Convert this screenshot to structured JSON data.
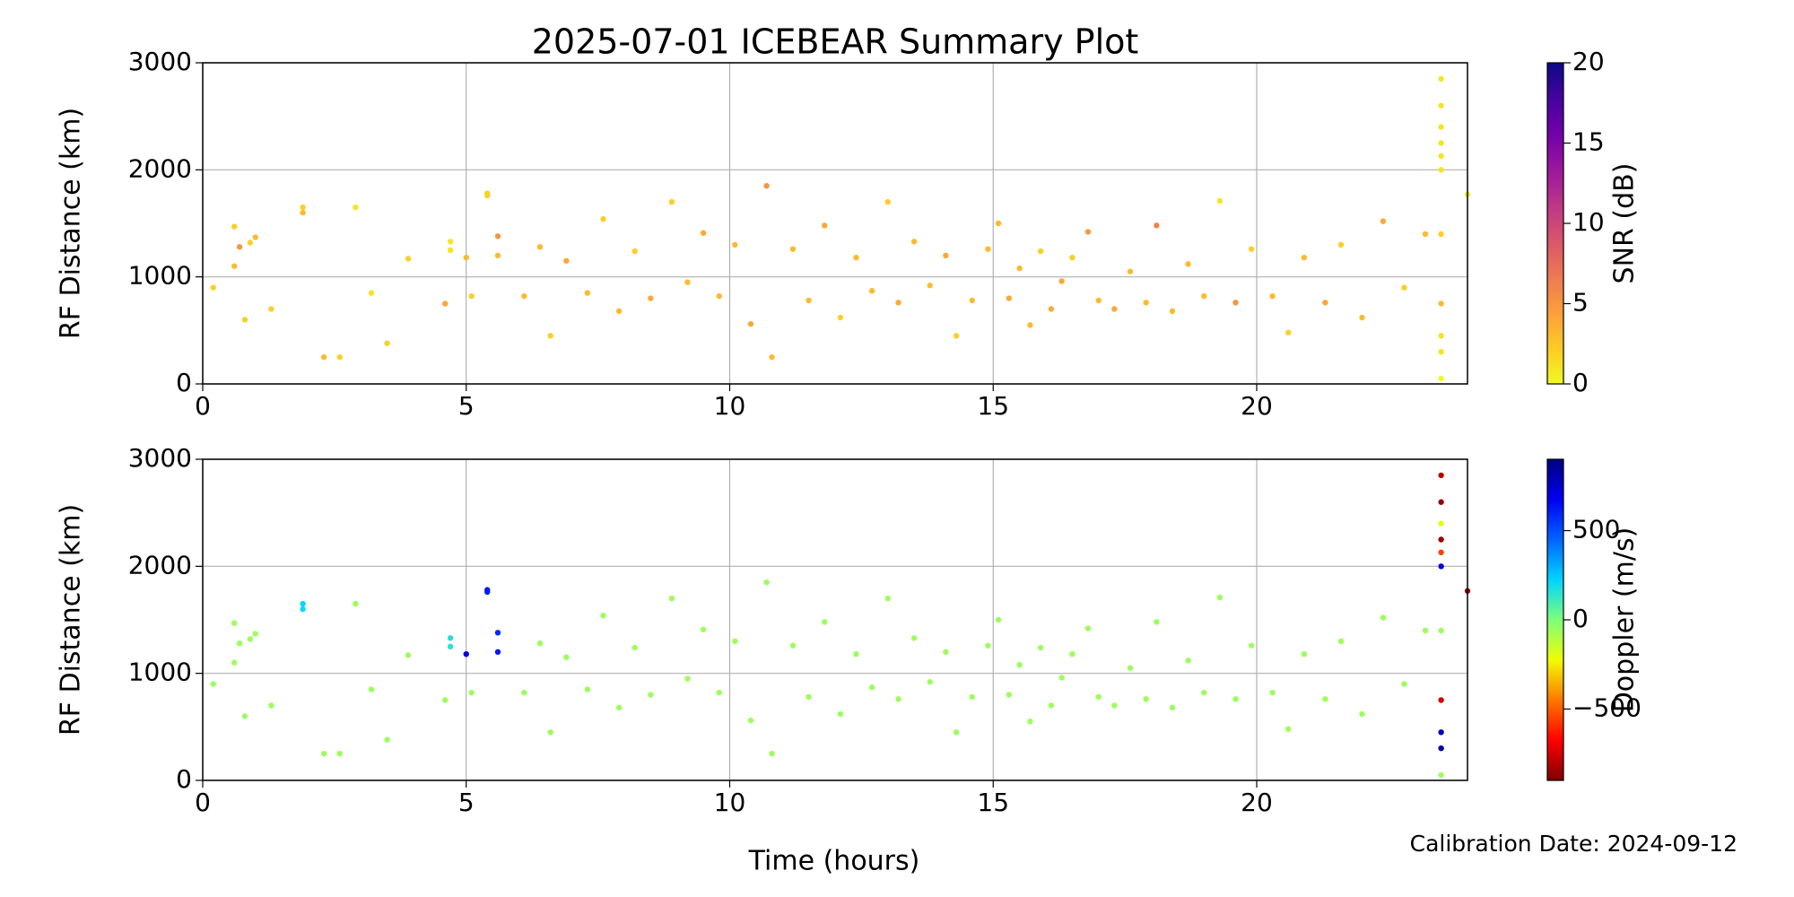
{
  "title": "2025-07-01 ICEBEAR Summary Plot",
  "x_label": "Time (hours)",
  "footnote": "Calibration Date: 2024-09-12",
  "chart_data": [
    {
      "type": "scatter",
      "ylabel": "RF Distance (km)",
      "xlim": [
        0,
        24
      ],
      "xticks": [
        0,
        5,
        10,
        15,
        20
      ],
      "ylim": [
        0,
        3000
      ],
      "yticks": [
        0,
        1000,
        2000,
        3000
      ],
      "grid": true,
      "x": [
        0.2,
        0.6,
        0.6,
        0.7,
        0.8,
        0.9,
        1.0,
        1.3,
        1.9,
        1.9,
        2.3,
        2.6,
        2.9,
        3.2,
        3.5,
        3.9,
        4.6,
        4.7,
        4.7,
        5.0,
        5.1,
        5.4,
        5.4,
        5.6,
        5.6,
        6.1,
        6.4,
        6.6,
        6.9,
        7.3,
        7.6,
        7.9,
        8.2,
        8.5,
        8.9,
        9.2,
        9.5,
        9.8,
        10.1,
        10.4,
        10.7,
        10.8,
        11.2,
        11.5,
        11.8,
        12.1,
        12.4,
        12.7,
        13.0,
        13.2,
        13.5,
        13.8,
        14.1,
        14.3,
        14.6,
        14.9,
        15.1,
        15.3,
        15.5,
        15.7,
        15.9,
        16.1,
        16.3,
        16.5,
        16.8,
        17.0,
        17.3,
        17.6,
        17.9,
        18.1,
        18.4,
        18.7,
        19.0,
        19.3,
        19.6,
        19.9,
        20.3,
        20.6,
        20.9,
        21.3,
        21.6,
        22.0,
        22.4,
        22.8,
        23.2,
        23.5,
        23.5,
        23.5,
        23.5,
        23.5,
        23.5,
        23.5,
        23.5,
        23.5,
        23.5,
        23.5,
        24.0
      ],
      "y": [
        900,
        1470,
        1100,
        1280,
        600,
        1320,
        1370,
        700,
        1600,
        1650,
        250,
        250,
        1650,
        850,
        380,
        1170,
        750,
        1250,
        1330,
        1180,
        820,
        1760,
        1780,
        1200,
        1380,
        820,
        1280,
        450,
        1150,
        850,
        1540,
        680,
        1240,
        800,
        1700,
        950,
        1410,
        820,
        1300,
        560,
        1850,
        250,
        1260,
        780,
        1480,
        620,
        1180,
        870,
        1700,
        760,
        1330,
        920,
        1200,
        450,
        780,
        1260,
        1500,
        800,
        1080,
        550,
        1240,
        700,
        960,
        1180,
        1420,
        780,
        700,
        1050,
        760,
        1480,
        680,
        1120,
        820,
        1710,
        760,
        1260,
        820,
        480,
        1180,
        760,
        1300,
        620,
        1520,
        900,
        1400,
        2850,
        2600,
        2400,
        2250,
        2130,
        2000,
        1400,
        750,
        450,
        300,
        50,
        1770
      ],
      "color_values": [
        2,
        2,
        3,
        5,
        2,
        2,
        3,
        2,
        3,
        2,
        3,
        2,
        1,
        1,
        2,
        2,
        4,
        1,
        1,
        3,
        2,
        2,
        2,
        3,
        5,
        3,
        3,
        2,
        4,
        3,
        2,
        3,
        2,
        4,
        2,
        3,
        4,
        3,
        3,
        4,
        5,
        3,
        3,
        3,
        4,
        2,
        3,
        3,
        2,
        4,
        3,
        3,
        4,
        2,
        3,
        3,
        3,
        4,
        3,
        3,
        2,
        4,
        4,
        2,
        5,
        3,
        4,
        3,
        3,
        6,
        3,
        3,
        3,
        1,
        5,
        2,
        3,
        2,
        3,
        4,
        2,
        3,
        4,
        2,
        3,
        1,
        1,
        1,
        1,
        1,
        1,
        2,
        3,
        1,
        1,
        0,
        1
      ],
      "colorbar": {
        "label": "SNR (dB)",
        "lim": [
          0,
          20
        ],
        "ticks": [
          0,
          5,
          10,
          15,
          20
        ],
        "colors": [
          "#f0f921",
          "#fdca26",
          "#fb9f3a",
          "#ed7953",
          "#d8576b",
          "#bd3786",
          "#9c179e",
          "#7201a8",
          "#46039f",
          "#0d0887"
        ]
      }
    },
    {
      "type": "scatter",
      "ylabel": "RF Distance (km)",
      "xlim": [
        0,
        24
      ],
      "xticks": [
        0,
        5,
        10,
        15,
        20
      ],
      "ylim": [
        0,
        3000
      ],
      "yticks": [
        0,
        1000,
        2000,
        3000
      ],
      "grid": true,
      "x": [
        0.2,
        0.6,
        0.6,
        0.7,
        0.8,
        0.9,
        1.0,
        1.3,
        1.9,
        1.9,
        2.3,
        2.6,
        2.9,
        3.2,
        3.5,
        3.9,
        4.6,
        4.7,
        4.7,
        5.0,
        5.1,
        5.4,
        5.4,
        5.6,
        5.6,
        6.1,
        6.4,
        6.6,
        6.9,
        7.3,
        7.6,
        7.9,
        8.2,
        8.5,
        8.9,
        9.2,
        9.5,
        9.8,
        10.1,
        10.4,
        10.7,
        10.8,
        11.2,
        11.5,
        11.8,
        12.1,
        12.4,
        12.7,
        13.0,
        13.2,
        13.5,
        13.8,
        14.1,
        14.3,
        14.6,
        14.9,
        15.1,
        15.3,
        15.5,
        15.7,
        15.9,
        16.1,
        16.3,
        16.5,
        16.8,
        17.0,
        17.3,
        17.6,
        17.9,
        18.1,
        18.4,
        18.7,
        19.0,
        19.3,
        19.6,
        19.9,
        20.3,
        20.6,
        20.9,
        21.3,
        21.6,
        22.0,
        22.4,
        22.8,
        23.2,
        23.5,
        23.5,
        23.5,
        23.5,
        23.5,
        23.5,
        23.5,
        23.5,
        23.5,
        23.5,
        23.5,
        24.0
      ],
      "y": [
        900,
        1470,
        1100,
        1280,
        600,
        1320,
        1370,
        700,
        1600,
        1650,
        250,
        250,
        1650,
        850,
        380,
        1170,
        750,
        1250,
        1330,
        1180,
        820,
        1760,
        1780,
        1200,
        1380,
        820,
        1280,
        450,
        1150,
        850,
        1540,
        680,
        1240,
        800,
        1700,
        950,
        1410,
        820,
        1300,
        560,
        1850,
        250,
        1260,
        780,
        1480,
        620,
        1180,
        870,
        1700,
        760,
        1330,
        920,
        1200,
        450,
        780,
        1260,
        1500,
        800,
        1080,
        550,
        1240,
        700,
        960,
        1180,
        1420,
        780,
        700,
        1050,
        760,
        1480,
        680,
        1120,
        820,
        1710,
        760,
        1260,
        820,
        480,
        1180,
        760,
        1300,
        620,
        1520,
        900,
        1400,
        2850,
        2600,
        2400,
        2250,
        2130,
        2000,
        1400,
        750,
        450,
        300,
        50,
        1770
      ],
      "color_values": [
        -60,
        -60,
        -70,
        -60,
        -50,
        -60,
        -60,
        -60,
        200,
        220,
        -60,
        -60,
        -60,
        -60,
        -60,
        -60,
        -60,
        150,
        170,
        700,
        -60,
        600,
        620,
        620,
        580,
        -60,
        -60,
        -60,
        -60,
        -60,
        -60,
        -60,
        -60,
        -60,
        -60,
        -60,
        -60,
        -60,
        -60,
        -60,
        -60,
        -60,
        -60,
        -60,
        -60,
        -60,
        -60,
        -60,
        -60,
        -60,
        -60,
        -60,
        -60,
        -60,
        -60,
        -60,
        -60,
        -60,
        -60,
        -60,
        -60,
        -60,
        -60,
        -60,
        -60,
        -60,
        -60,
        -60,
        -60,
        -60,
        -60,
        -60,
        -60,
        -60,
        -60,
        -60,
        -60,
        -60,
        -60,
        -60,
        -60,
        -60,
        -60,
        -60,
        -60,
        -800,
        -850,
        -200,
        -850,
        -550,
        700,
        -60,
        -750,
        800,
        850,
        -60,
        -850
      ],
      "colorbar": {
        "label": "Doppler (m/s)",
        "lim": [
          -900,
          900
        ],
        "ticks": [
          {
            "value": -500,
            "label": "−500"
          },
          0,
          500
        ],
        "colors": [
          "#7f0000",
          "#ff0000",
          "#ff7700",
          "#f1fc06",
          "#7dff7a",
          "#00d4ff",
          "#0064ff",
          "#0000f1",
          "#00007f"
        ]
      }
    }
  ]
}
